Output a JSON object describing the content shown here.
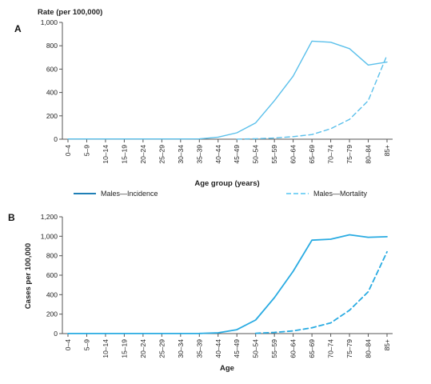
{
  "chart_data": [
    {
      "type": "line",
      "panel_label": "A",
      "ylabel": "Rate (per 100,000)",
      "xlabel": "Age group (years)",
      "ylim": [
        0,
        1000
      ],
      "yticks": [
        "0",
        "200",
        "400",
        "600",
        "800",
        "1,000"
      ],
      "categories": [
        "0–4",
        "5–9",
        "10–14",
        "15–19",
        "20–24",
        "25–29",
        "30–34",
        "35–39",
        "40–44",
        "45–49",
        "50–54",
        "55–59",
        "60–64",
        "65–69",
        "70–74",
        "75–79",
        "80–84",
        "85+"
      ],
      "grid": false,
      "legend_position": "bottom",
      "series": [
        {
          "name": "Males—Incidence",
          "style": "solid",
          "color": "#5bc0eb",
          "values": [
            2,
            2,
            2,
            2,
            2,
            2,
            2,
            3,
            18,
            55,
            140,
            330,
            540,
            840,
            830,
            775,
            635,
            660
          ]
        },
        {
          "name": "Males—Mortality",
          "style": "dashed",
          "color": "#5bc0eb",
          "values": [
            null,
            null,
            null,
            null,
            null,
            null,
            null,
            null,
            null,
            1,
            4,
            10,
            22,
            40,
            90,
            170,
            330,
            720
          ]
        }
      ]
    },
    {
      "type": "line",
      "panel_label": "B",
      "ylabel": "Cases per 100,000",
      "xlabel": "Age",
      "ylim": [
        0,
        1200
      ],
      "yticks": [
        "0",
        "200",
        "400",
        "600",
        "800",
        "1,000",
        "1,200"
      ],
      "categories": [
        "0–4",
        "5–9",
        "10–14",
        "15–19",
        "20–24",
        "25–29",
        "30–34",
        "35–39",
        "40–44",
        "45–49",
        "50–54",
        "55–59",
        "60–64",
        "65–69",
        "70–74",
        "75–79",
        "80–84",
        "85+"
      ],
      "grid": false,
      "series": [
        {
          "name": "",
          "style": "solid",
          "color": "#29abe2",
          "values": [
            1,
            1,
            1,
            1,
            1,
            1,
            1,
            2,
            8,
            40,
            140,
            370,
            640,
            960,
            970,
            1015,
            990,
            995
          ]
        },
        {
          "name": "",
          "style": "dashed",
          "color": "#29abe2",
          "values": [
            null,
            null,
            null,
            null,
            null,
            null,
            null,
            null,
            null,
            null,
            3,
            12,
            28,
            60,
            110,
            240,
            430,
            840
          ]
        }
      ]
    }
  ]
}
